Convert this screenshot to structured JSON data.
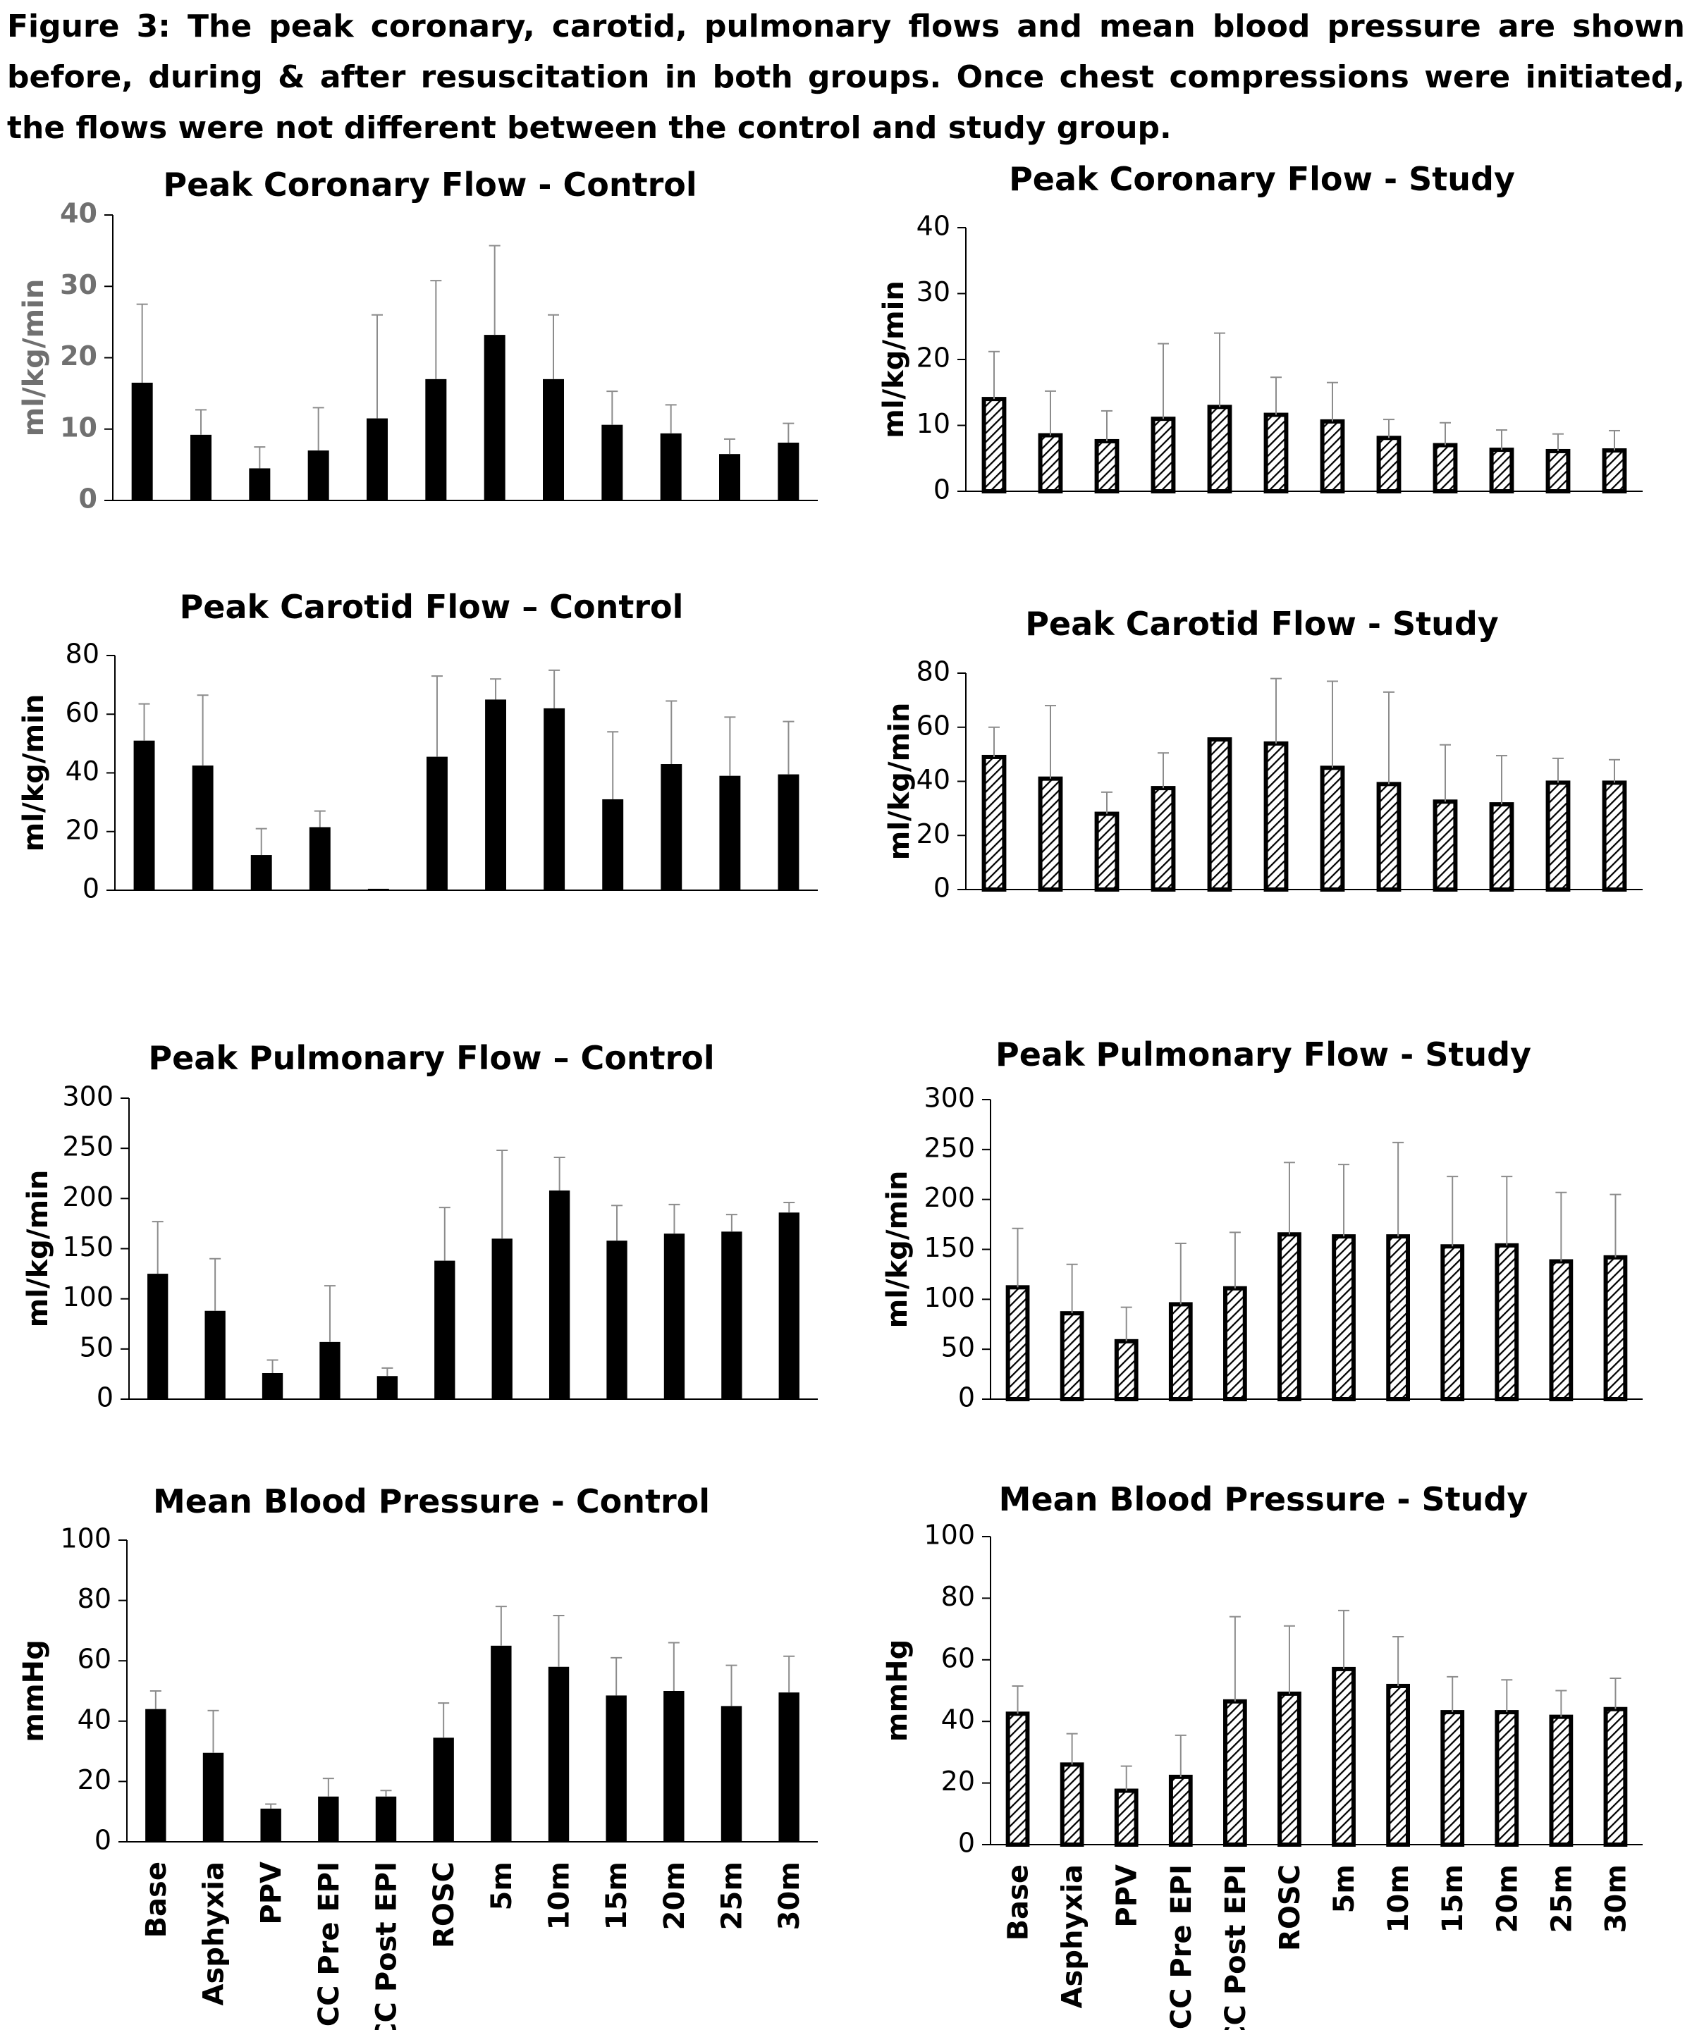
{
  "caption": "Figure 3: The peak coronary, carotid, pulmonary flows and mean blood pressure are shown before, during & after resuscitation in both groups. Once chest compressions were initiated, the flows were not different between the control and study group.",
  "colors": {
    "control_fill": "#000000",
    "study_fill": "#ffffff",
    "study_hatch": "#000000",
    "error_bar": "#8c8c8c",
    "axis": "#000000",
    "coronary_control_tick": "#707070"
  },
  "chart_data": [
    {
      "id": "coronary-control",
      "type": "bar",
      "title": "Peak Coronary Flow - Control",
      "ylabel": "ml/kg/min",
      "ylim": [
        0,
        40
      ],
      "yticks": [
        0,
        10,
        20,
        30,
        40
      ],
      "categories": [
        "Base",
        "Asphyxia",
        "PPV",
        "CC Pre EPI",
        "CC Post EPI",
        "ROSC",
        "5m",
        "10m",
        "15m",
        "20m",
        "25m",
        "30m"
      ],
      "values": [
        16.5,
        9.2,
        4.5,
        7,
        11.5,
        17,
        23.2,
        17,
        10.6,
        9.4,
        6.5,
        8.1
      ],
      "errors": [
        11,
        3.5,
        3,
        6,
        14.5,
        13.8,
        12.5,
        9,
        4.7,
        4,
        2.1,
        2.7
      ],
      "style": "solid",
      "show_categories": false
    },
    {
      "id": "coronary-study",
      "type": "bar",
      "title": "Peak Coronary Flow - Study",
      "ylabel": "ml/kg/min",
      "ylim": [
        0,
        40
      ],
      "yticks": [
        0,
        10,
        20,
        30,
        40
      ],
      "categories": [
        "Base",
        "Asphyxia",
        "PPV",
        "CC Pre EPI",
        "CC Post EPI",
        "ROSC",
        "5m",
        "10m",
        "15m",
        "20m",
        "25m",
        "30m"
      ],
      "values": [
        14,
        8.5,
        7.6,
        11,
        12.8,
        11.6,
        10.6,
        8.1,
        7,
        6.3,
        6.1,
        6.2
      ],
      "errors": [
        7.2,
        6.7,
        4.6,
        11.4,
        11.2,
        5.7,
        5.9,
        2.8,
        3.4,
        3,
        2.6,
        3
      ],
      "style": "hatched",
      "show_categories": false
    },
    {
      "id": "carotid-control",
      "type": "bar",
      "title": "Peak Carotid Flow – Control",
      "ylabel": "ml/kg/min",
      "ylim": [
        0,
        80
      ],
      "yticks": [
        0,
        20,
        40,
        60,
        80
      ],
      "categories": [
        "Base",
        "Asphyxia",
        "PPV",
        "CC Pre EPI",
        "CC Post EPI",
        "ROSC",
        "5m",
        "10m",
        "15m",
        "20m",
        "25m",
        "30m"
      ],
      "values": [
        51,
        42.5,
        12,
        21.5,
        0.5,
        45.5,
        65,
        62,
        31,
        43,
        39,
        39.5
      ],
      "errors": [
        12.5,
        24,
        9,
        5.5,
        0,
        27.5,
        7,
        13,
        23,
        21.5,
        20,
        18
      ],
      "style": "solid",
      "show_categories": false
    },
    {
      "id": "carotid-study",
      "type": "bar",
      "title": "Peak Carotid Flow - Study",
      "ylabel": "ml/kg/min",
      "ylim": [
        0,
        80
      ],
      "yticks": [
        0,
        20,
        40,
        60,
        80
      ],
      "categories": [
        "Base",
        "Asphyxia",
        "PPV",
        "CC Pre EPI",
        "CC Post EPI",
        "ROSC",
        "5m",
        "10m",
        "15m",
        "20m",
        "25m",
        "30m"
      ],
      "values": [
        49,
        41,
        28,
        37.5,
        55.5,
        54,
        45,
        39,
        32.5,
        31.5,
        39.5,
        39.5
      ],
      "errors": [
        11,
        27,
        8,
        13,
        0,
        24,
        32,
        34,
        21,
        18,
        9,
        8.5
      ],
      "style": "hatched",
      "show_categories": false
    },
    {
      "id": "pulmonary-control",
      "type": "bar",
      "title": "Peak Pulmonary Flow – Control",
      "ylabel": "ml/kg/min",
      "ylim": [
        0,
        300
      ],
      "yticks": [
        0,
        50,
        100,
        150,
        200,
        250,
        300
      ],
      "categories": [
        "Base",
        "Asphyxia",
        "PPV",
        "CC Pre EPI",
        "CC Post EPI",
        "ROSC",
        "5m",
        "10m",
        "15m",
        "20m",
        "25m",
        "30m"
      ],
      "values": [
        125,
        88,
        26,
        57,
        23,
        138,
        160,
        208,
        158,
        165,
        167,
        186
      ],
      "errors": [
        52,
        52,
        13,
        56,
        8,
        53,
        88,
        33,
        35,
        29,
        17,
        10
      ],
      "style": "solid",
      "show_categories": false
    },
    {
      "id": "pulmonary-study",
      "type": "bar",
      "title": "Peak Pulmonary Flow - Study",
      "ylabel": "ml/kg/min",
      "ylim": [
        0,
        300
      ],
      "yticks": [
        0,
        50,
        100,
        150,
        200,
        250,
        300
      ],
      "categories": [
        "Base",
        "Asphyxia",
        "PPV",
        "CC Pre EPI",
        "CC Post EPI",
        "ROSC",
        "5m",
        "10m",
        "15m",
        "20m",
        "25m",
        "30m"
      ],
      "values": [
        112,
        86,
        58,
        95,
        111,
        165,
        163,
        163,
        153,
        154,
        138,
        142
      ],
      "errors": [
        59,
        49,
        34,
        61,
        56,
        72,
        72,
        94,
        70,
        69,
        69,
        63
      ],
      "style": "hatched",
      "show_categories": false
    },
    {
      "id": "bp-control",
      "type": "bar",
      "title": "Mean Blood Pressure - Control",
      "ylabel": "mmHg",
      "ylim": [
        0,
        100
      ],
      "yticks": [
        0,
        20,
        40,
        60,
        80,
        100
      ],
      "categories": [
        "Base",
        "Asphyxia",
        "PPV",
        "CC Pre EPI",
        "CC Post EPI",
        "ROSC",
        "5m",
        "10m",
        "15m",
        "20m",
        "25m",
        "30m"
      ],
      "values": [
        44,
        29.5,
        11,
        15,
        15,
        34.5,
        65,
        58,
        48.5,
        50,
        45,
        49.5
      ],
      "errors": [
        6,
        14,
        1.5,
        6,
        2,
        11.5,
        13,
        17,
        12.5,
        16,
        13.5,
        12
      ],
      "style": "solid",
      "show_categories": true
    },
    {
      "id": "bp-study",
      "type": "bar",
      "title": "Mean Blood Pressure - Study",
      "ylabel": "mmHg",
      "ylim": [
        0,
        100
      ],
      "yticks": [
        0,
        20,
        40,
        60,
        80,
        100
      ],
      "categories": [
        "Base",
        "Asphyxia",
        "PPV",
        "CC Pre EPI",
        "CC Post EPI",
        "ROSC",
        "5m",
        "10m",
        "15m",
        "20m",
        "25m",
        "30m"
      ],
      "values": [
        42.5,
        26,
        17.5,
        22,
        46.5,
        49,
        57,
        51.5,
        43,
        43,
        41.5,
        44
      ],
      "errors": [
        9,
        10,
        8,
        13.5,
        27.5,
        22,
        19,
        16,
        11.5,
        10.5,
        8.5,
        10
      ],
      "style": "hatched",
      "show_categories": true
    }
  ]
}
